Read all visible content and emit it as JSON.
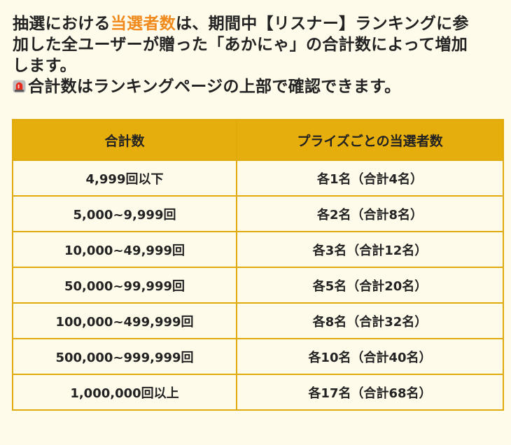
{
  "intro": {
    "line1_pre": "抽選における",
    "line1_highlight": "当選者数",
    "line1_post": "は、期間中【リスナー】ランキングに参",
    "line2": "加した全ユーザーが贈った「あかにゃ」の合計数によって増加",
    "line3": "します。",
    "note_icon": "siren-emoji-icon",
    "note_text": "合計数はランキングページの上部で確認できます。"
  },
  "colors": {
    "highlight": "#f08a1c",
    "table_header_bg": "#e6ae0c",
    "table_border": "#e0a90c",
    "page_bg": "#fffbea"
  },
  "table": {
    "headers": [
      "合計数",
      "プライズごとの当選者数"
    ],
    "rows": [
      [
        "4,999回以下",
        "各1名（合計4名）"
      ],
      [
        "5,000~9,999回",
        "各2名（合計8名）"
      ],
      [
        "10,000~49,999回",
        "各3名（合計12名）"
      ],
      [
        "50,000~99,999回",
        "各5名（合計20名）"
      ],
      [
        "100,000~499,999回",
        "各8名（合計32名）"
      ],
      [
        "500,000~999,999回",
        "各10名（合計40名）"
      ],
      [
        "1,000,000回以上",
        "各17名（合計68名）"
      ]
    ]
  }
}
